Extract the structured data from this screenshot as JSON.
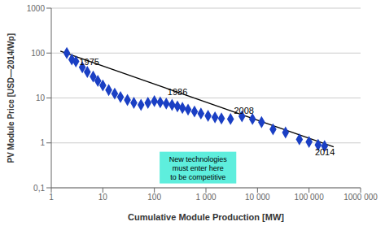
{
  "chart_data": {
    "type": "scatter",
    "xlabel": "Cumulative Module Production [MW]",
    "ylabel": "PV Module Price [USD—2014/Wp]",
    "log": true,
    "grid": "y",
    "xlim": [
      1,
      1000000
    ],
    "ylim": [
      0.1,
      1000
    ],
    "xticks": [
      1,
      10,
      100,
      {
        "value": 1000,
        "label": "1 000"
      },
      {
        "value": 10000,
        "label": "10 000"
      },
      {
        "value": 100000,
        "label": "100 000"
      },
      {
        "value": 1000000,
        "label": "1000 000"
      }
    ],
    "yticks": [
      {
        "value": 0.1,
        "label": "0,1"
      },
      1,
      10,
      100,
      1000
    ],
    "series": [
      {
        "type": "line",
        "color": "black",
        "x": [
          1.5,
          300000
        ],
        "values": [
          110,
          0.82
        ]
      },
      {
        "type": "scatter",
        "color": "#1a3fc4",
        "marker": "diamond",
        "x": [
          2,
          2.5,
          3.0,
          4.0,
          5.0,
          6.5,
          8.0,
          10,
          13,
          17,
          22,
          30,
          40,
          55,
          75,
          100,
          130,
          170,
          220,
          280,
          350,
          450,
          600,
          800,
          1100,
          1500,
          2000,
          3000,
          5000,
          8000,
          12000,
          20000,
          35000,
          65000,
          100000,
          150000,
          200000
        ],
        "values": [
          100,
          72,
          65,
          48,
          38,
          30,
          24,
          19,
          15,
          12.5,
          10.5,
          9.0,
          7.8,
          7.0,
          7.8,
          8.5,
          8.0,
          7.5,
          7.0,
          6.5,
          6.0,
          5.5,
          5.0,
          4.5,
          4.0,
          3.7,
          3.5,
          3.4,
          3.9,
          3.4,
          2.9,
          2.0,
          1.7,
          1.2,
          1.05,
          0.9,
          0.85
        ]
      }
    ],
    "annotations": [
      {
        "text": "1975",
        "x": 3.5,
        "y": 55
      },
      {
        "text": "1986",
        "x": 180,
        "y": 11.5
      },
      {
        "text": "2008",
        "x": 3500,
        "y": 4.5
      },
      {
        "text": "2014",
        "x": 130000,
        "y": 0.52
      },
      {
        "text": "New technologies\nmust enter here\nto be competitive",
        "x": 700,
        "y": 0.125,
        "color": "#5eeedd"
      }
    ]
  }
}
